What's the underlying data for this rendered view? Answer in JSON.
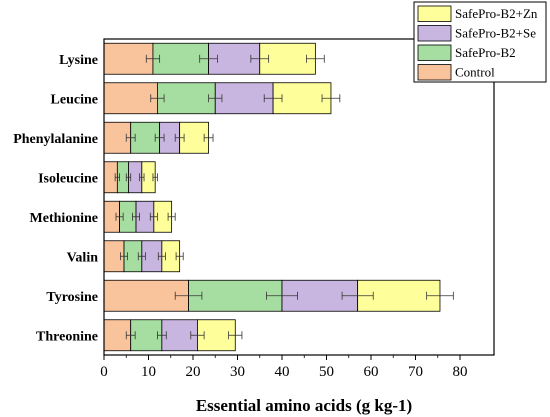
{
  "chart_data": {
    "type": "bar",
    "orientation": "horizontal",
    "stacked": true,
    "categories": [
      "Lysine",
      "Leucine",
      "Phenylalanine",
      "Isoleucine",
      "Methionine",
      "Valin",
      "Tyrosine",
      "Threonine"
    ],
    "series": [
      {
        "name": "Control",
        "color": "#F9C49C",
        "values": [
          11,
          12,
          6,
          3,
          3.5,
          4.5,
          19,
          6
        ],
        "errors": [
          1.5,
          1.5,
          1,
          0.5,
          0.8,
          0.8,
          3,
          1
        ]
      },
      {
        "name": "SafePro-B2",
        "color": "#A6DDA0",
        "values": [
          12.5,
          13,
          6.5,
          2.5,
          3.7,
          4,
          21,
          7
        ],
        "errors": [
          2,
          1.5,
          1,
          0.5,
          0.8,
          0.8,
          3.5,
          1
        ]
      },
      {
        "name": "SafePro-B2+Se",
        "color": "#C9B6E0",
        "values": [
          11.5,
          13,
          4.5,
          3,
          4,
          4.5,
          17,
          8
        ],
        "errors": [
          2,
          2,
          1,
          0.5,
          0.8,
          0.8,
          3.5,
          1.5
        ]
      },
      {
        "name": "SafePro-B2+Zn",
        "color": "#FEFE9A",
        "values": [
          12.5,
          13,
          6.5,
          3,
          4,
          4,
          18.5,
          8.5
        ],
        "errors": [
          2,
          2,
          1,
          0.5,
          0.8,
          0.8,
          3,
          1.5
        ]
      }
    ],
    "xlabel": "Essential amino acids (g kg-1)",
    "ylabel": "",
    "title": "",
    "xlim": [
      0,
      85
    ],
    "xticks": [
      0,
      10,
      20,
      30,
      40,
      50,
      60,
      70,
      80
    ],
    "grid": false,
    "legend_position": "top-right",
    "legend_order": [
      "SafePro-B2+Zn",
      "SafePro-B2+Se",
      "SafePro-B2",
      "Control"
    ]
  }
}
